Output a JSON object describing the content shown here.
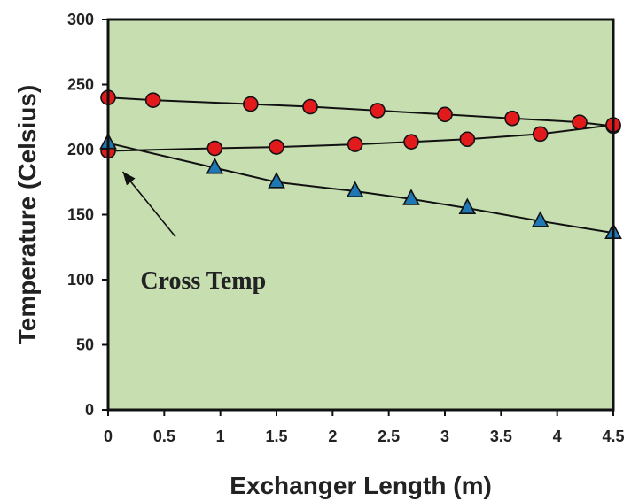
{
  "chart_data": {
    "type": "line",
    "title": "",
    "xlabel": "Exchanger Length (m)",
    "ylabel": "Temperature (Celsius)",
    "xlim": [
      0,
      4.5
    ],
    "ylim": [
      0,
      300
    ],
    "x_ticks": [
      0,
      0.5,
      1,
      1.5,
      2,
      2.5,
      3,
      3.5,
      4,
      4.5
    ],
    "x_tick_labels": [
      "0",
      "0.5",
      "1",
      "1.5",
      "2",
      "2.5",
      "3",
      "3.5",
      "4",
      "4.5"
    ],
    "y_ticks": [
      0,
      50,
      100,
      150,
      200,
      250,
      300
    ],
    "y_tick_labels": [
      "0",
      "50",
      "100",
      "150",
      "200",
      "250",
      "300"
    ],
    "grid": false,
    "background_color": "#c6deb0",
    "series": [
      {
        "marker": "circle",
        "color": "#e31a1c",
        "points": [
          [
            0,
            240
          ],
          [
            0.4,
            238
          ],
          [
            1.27,
            235
          ],
          [
            1.8,
            233
          ],
          [
            2.4,
            230
          ],
          [
            3.0,
            227
          ],
          [
            3.6,
            224
          ],
          [
            4.2,
            221
          ],
          [
            4.5,
            218
          ]
        ]
      },
      {
        "marker": "circle",
        "color": "#e31a1c",
        "points": [
          [
            0,
            199
          ],
          [
            0.95,
            201
          ],
          [
            1.5,
            202
          ],
          [
            2.2,
            204
          ],
          [
            2.7,
            206
          ],
          [
            3.2,
            208
          ],
          [
            3.85,
            212
          ],
          [
            4.5,
            219
          ]
        ]
      },
      {
        "marker": "triangle",
        "color": "#1f77b4",
        "points": [
          [
            0,
            205
          ],
          [
            0.95,
            186
          ],
          [
            1.5,
            175
          ],
          [
            2.2,
            168
          ],
          [
            2.7,
            162
          ],
          [
            3.2,
            155
          ],
          [
            3.85,
            145
          ],
          [
            4.5,
            136
          ]
        ]
      }
    ],
    "annotations": [
      {
        "text": "Cross Temp",
        "arrow_tail": [
          0.6,
          133
        ],
        "arrow_head": [
          0.13,
          183
        ],
        "label_at": [
          0.35,
          100
        ]
      }
    ]
  }
}
